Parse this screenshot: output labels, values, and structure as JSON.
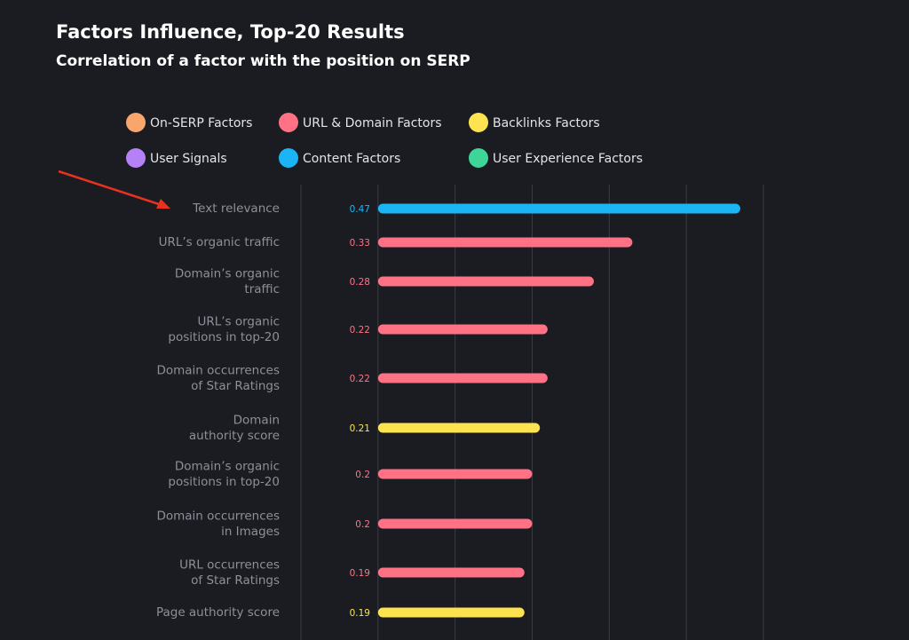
{
  "chart_data": {
    "type": "bar",
    "orientation": "horizontal",
    "title": "Factors Influence, Top-20 Results",
    "subtitle": "Correlation of a factor with the position on SERP",
    "legend": [
      {
        "name": "On-SERP Factors",
        "color": "#f9a56e"
      },
      {
        "name": "URL & Domain Factors",
        "color": "#ff7286"
      },
      {
        "name": "Backlinks Factors",
        "color": "#fce34f"
      },
      {
        "name": "User Signals",
        "color": "#b482f6"
      },
      {
        "name": "Content Factors",
        "color": "#1bb5f5"
      },
      {
        "name": "User Experience Factors",
        "color": "#3dd598"
      }
    ],
    "categories": [
      [
        "Text relevance"
      ],
      [
        "URL’s organic traffic"
      ],
      [
        "Domain’s organic",
        "traffic"
      ],
      [
        "URL’s organic",
        "positions in top-20"
      ],
      [
        "Domain occurrences",
        "of Star Ratings"
      ],
      [
        "Domain",
        "authority score"
      ],
      [
        "Domain’s organic",
        "positions in top-20"
      ],
      [
        "Domain occurrences",
        "in Images"
      ],
      [
        "URL occurrences",
        "of Star Ratings"
      ],
      [
        "Page authority score"
      ]
    ],
    "values": [
      0.47,
      0.33,
      0.28,
      0.22,
      0.22,
      0.21,
      0.2,
      0.2,
      0.19,
      0.19
    ],
    "groups": [
      4,
      1,
      1,
      1,
      1,
      2,
      1,
      1,
      1,
      2
    ],
    "xlim": [
      -0.1,
      0.5
    ],
    "xticks": [
      -0.1,
      0,
      0.1,
      0.2,
      0.3,
      0.4,
      0.5
    ],
    "grid": true
  }
}
